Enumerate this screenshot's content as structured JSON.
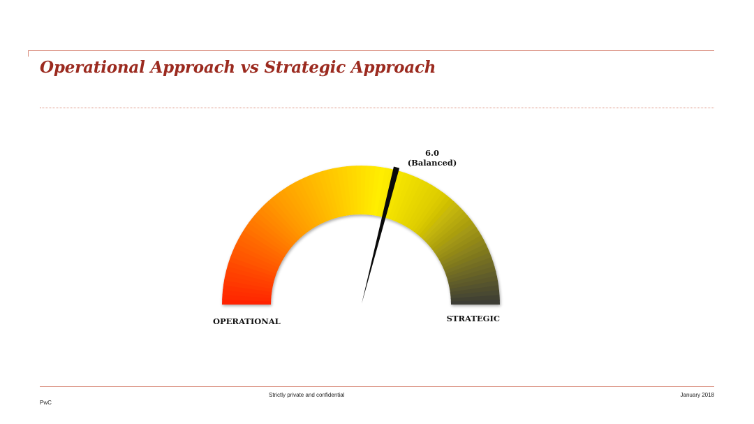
{
  "slide": {
    "title": "Operational Approach vs Strategic Approach"
  },
  "gauge": {
    "value": 6.0,
    "value_label": "6.0",
    "status_label": "(Balanced)",
    "min_label": "OPERATIONAL",
    "max_label": "STRATEGIC",
    "gradient_colors": [
      "#ff2200",
      "#ff9900",
      "#ffee00",
      "#ddcc00",
      "#3a3a36"
    ]
  },
  "footer": {
    "confidential": "Strictly private and confidential",
    "date": "January 2018",
    "brand": "PwC"
  },
  "colors": {
    "title": "#9b2a1f",
    "rule": "#d98d7d"
  }
}
